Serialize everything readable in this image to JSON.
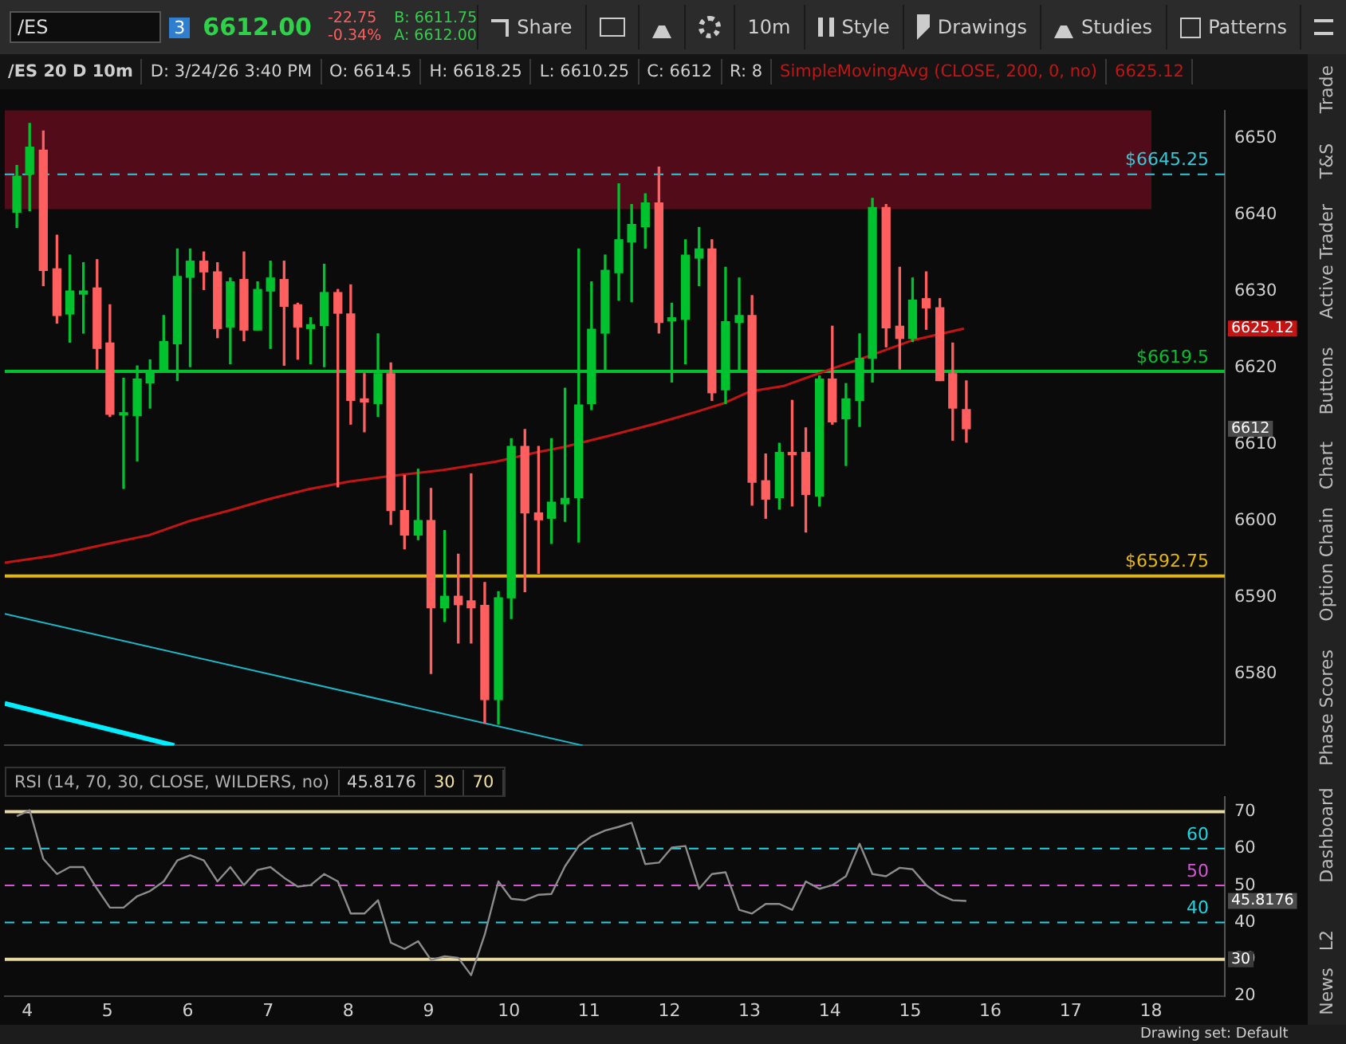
{
  "chart_data": [
    {
      "type": "other",
      "annotations": [
        "/ES",
        "3",
        "6612.00",
        "-22.75",
        "-0.34%",
        "B: 6611.75",
        "A: 6612.00",
        "Share",
        "10m",
        "Style",
        "Drawings",
        "Studies",
        "Patterns",
        "Trade",
        "T&S",
        "Active Trader",
        "Buttons",
        "Chart",
        "Option Chain",
        "Phase Scores",
        "Dashboard",
        "L2",
        "News",
        "Drawing set: Default"
      ]
    },
    {
      "type": "candlestick",
      "xlim": [
        3.72,
        18.92
      ],
      "xticks": [
        4,
        5,
        6,
        7,
        8,
        9,
        10,
        11,
        12,
        13,
        14,
        15,
        16,
        17,
        18
      ],
      "ylim": [
        6570.6,
        6653.6
      ],
      "yticks": [
        6580,
        6590,
        6600,
        6610,
        6620,
        6630,
        6640,
        6650
      ],
      "tick_labels": "y",
      "grid": false,
      "legend": "top right",
      "x": [
        3.87,
        4.03,
        4.2,
        4.37,
        4.53,
        4.7,
        4.87,
        5.03,
        5.2,
        5.37,
        5.53,
        5.7,
        5.87,
        6.03,
        6.2,
        6.37,
        6.53,
        6.7,
        6.87,
        7.03,
        7.2,
        7.37,
        7.53,
        7.7,
        7.87,
        8.03,
        8.2,
        8.37,
        8.53,
        8.7,
        8.87,
        9.03,
        9.2,
        9.37,
        9.53,
        9.7,
        9.87,
        10.03,
        10.2,
        10.37,
        10.53,
        10.7,
        10.87,
        11.03,
        11.2,
        11.37,
        11.53,
        11.7,
        11.87,
        12.03,
        12.2,
        12.37,
        12.53,
        12.7,
        12.87,
        13.03,
        13.2,
        13.37,
        13.53,
        13.7,
        13.87,
        14.03,
        14.2,
        14.37,
        14.53,
        14.7,
        14.87,
        15.03,
        15.2,
        15.37,
        15.53,
        15.7
      ],
      "ohlc": [
        [
          6640.3,
          6646.4,
          6638.3,
          6645.0
        ],
        [
          6645.3,
          6651.9,
          6640.5,
          6648.8
        ],
        [
          6648.4,
          6650.9,
          6630.7,
          6632.7
        ],
        [
          6632.9,
          6637.3,
          6625.8,
          6626.8
        ],
        [
          6627.0,
          6634.7,
          6623.3,
          6630.0
        ],
        [
          6629.6,
          6633.7,
          6624.5,
          6630.0
        ],
        [
          6630.4,
          6634.1,
          6619.8,
          6622.5
        ],
        [
          6623.2,
          6628.2,
          6613.6,
          6613.9
        ],
        [
          6613.8,
          6618.6,
          6604.2,
          6614.1
        ],
        [
          6613.7,
          6620.2,
          6607.8,
          6618.5
        ],
        [
          6618.0,
          6621.0,
          6614.7,
          6619.5
        ],
        [
          6619.5,
          6626.8,
          6619.5,
          6623.4
        ],
        [
          6623.1,
          6635.5,
          6618.3,
          6631.9
        ],
        [
          6631.8,
          6635.5,
          6620.1,
          6633.9
        ],
        [
          6633.9,
          6635.1,
          6630.2,
          6632.5
        ],
        [
          6632.5,
          6633.7,
          6623.9,
          6625.1
        ],
        [
          6625.3,
          6631.7,
          6620.5,
          6631.2
        ],
        [
          6631.5,
          6635.1,
          6623.5,
          6624.9
        ],
        [
          6624.9,
          6631.2,
          6624.9,
          6630.2
        ],
        [
          6630.0,
          6633.9,
          6622.5,
          6631.7
        ],
        [
          6631.5,
          6633.9,
          6620.3,
          6628.0
        ],
        [
          6628.2,
          6628.4,
          6621.1,
          6625.3
        ],
        [
          6625.1,
          6626.5,
          6620.5,
          6625.6
        ],
        [
          6625.5,
          6633.5,
          6620.1,
          6629.8
        ],
        [
          6629.8,
          6630.2,
          6604.4,
          6627.1
        ],
        [
          6627.0,
          6630.8,
          6612.6,
          6615.7
        ],
        [
          6615.9,
          6619.2,
          6611.6,
          6615.5
        ],
        [
          6615.3,
          6624.4,
          6613.6,
          6619.2
        ],
        [
          6619.2,
          6620.6,
          6599.5,
          6601.3
        ],
        [
          6601.3,
          6605.9,
          6596.3,
          6598.1
        ],
        [
          6598.1,
          6606.7,
          6597.5,
          6600.0
        ],
        [
          6600.0,
          6604.2,
          6580.0,
          6588.6
        ],
        [
          6588.6,
          6598.7,
          6586.8,
          6590.1
        ],
        [
          6590.1,
          6595.6,
          6584.0,
          6589.0
        ],
        [
          6589.5,
          6606.1,
          6584.0,
          6588.6
        ],
        [
          6588.9,
          6591.9,
          6573.5,
          6576.6
        ],
        [
          6576.6,
          6590.7,
          6573.4,
          6589.9
        ],
        [
          6589.9,
          6610.7,
          6587.2,
          6609.7
        ],
        [
          6609.7,
          6611.9,
          6590.7,
          6601.0
        ],
        [
          6601.0,
          6609.7,
          6593.1,
          6600.1
        ],
        [
          6600.3,
          6610.7,
          6597.0,
          6602.4
        ],
        [
          6602.2,
          6617.3,
          6599.9,
          6602.9
        ],
        [
          6603.0,
          6635.5,
          6597.2,
          6615.1
        ],
        [
          6615.3,
          6631.2,
          6614.5,
          6625.0
        ],
        [
          6624.5,
          6634.7,
          6619.7,
          6632.7
        ],
        [
          6632.4,
          6644.0,
          6628.8,
          6636.7
        ],
        [
          6636.4,
          6641.3,
          6628.6,
          6638.7
        ],
        [
          6638.4,
          6642.7,
          6635.6,
          6641.5
        ],
        [
          6641.5,
          6646.2,
          6624.5,
          6625.9
        ],
        [
          6626.1,
          6628.4,
          6618.1,
          6626.5
        ],
        [
          6626.3,
          6636.7,
          6620.5,
          6634.7
        ],
        [
          6634.3,
          6638.3,
          6630.7,
          6635.5
        ],
        [
          6635.5,
          6636.7,
          6615.7,
          6616.7
        ],
        [
          6617.1,
          6633.1,
          6615.3,
          6626.0
        ],
        [
          6625.9,
          6631.7,
          6619.7,
          6626.8
        ],
        [
          6626.8,
          6629.4,
          6602.0,
          6605.0
        ],
        [
          6605.2,
          6608.7,
          6600.3,
          6602.8
        ],
        [
          6603.0,
          6610.1,
          6601.5,
          6608.9
        ],
        [
          6608.9,
          6615.7,
          6601.9,
          6608.6
        ],
        [
          6608.9,
          6612.1,
          6598.5,
          6603.4
        ],
        [
          6603.2,
          6618.9,
          6601.9,
          6618.5
        ],
        [
          6618.5,
          6625.4,
          6612.6,
          6612.9
        ],
        [
          6613.3,
          6617.9,
          6607.2,
          6615.9
        ],
        [
          6615.7,
          6624.4,
          6612.3,
          6621.2
        ],
        [
          6621.2,
          6642.1,
          6618.1,
          6640.9
        ],
        [
          6640.9,
          6641.3,
          6622.7,
          6625.2
        ],
        [
          6625.4,
          6633.1,
          6619.8,
          6623.8
        ],
        [
          6623.8,
          6631.7,
          6623.4,
          6628.8
        ],
        [
          6629.0,
          6632.5,
          6625.0,
          6627.8
        ],
        [
          6627.8,
          6629.0,
          6618.3,
          6618.3
        ],
        [
          6619.2,
          6623.2,
          6610.5,
          6614.7
        ],
        [
          6614.5,
          6618.25,
          6610.25,
          6612
        ]
      ],
      "series": [
        {
          "name": "SimpleMovingAvg (CLOSE, 200, 0, no)",
          "type": "line",
          "color": "#c41414",
          "x": [
            3.72,
            4.32,
            5.02,
            5.52,
            6.01,
            6.51,
            7.01,
            7.51,
            8.01,
            8.51,
            9.18,
            9.84,
            10.34,
            10.68,
            11.18,
            11.84,
            12.33,
            12.67,
            13.01,
            13.43,
            14.01,
            14.51,
            15.01,
            15.67
          ],
          "values": [
            6594.5,
            6595.4,
            6597.0,
            6598.1,
            6599.9,
            6601.3,
            6602.8,
            6604.1,
            6605.1,
            6605.8,
            6606.6,
            6607.7,
            6608.9,
            6609.6,
            6610.9,
            6612.7,
            6614.2,
            6615.3,
            6616.9,
            6617.6,
            6619.8,
            6621.6,
            6623.5,
            6625.1
          ]
        },
        {
          "type": "line",
          "color": "#1ab8c8",
          "x": [
            3.72,
            10.92
          ],
          "values": [
            6587.8,
            6570.6
          ]
        },
        {
          "type": "line",
          "color": "#00eeff",
          "x": [
            3.72,
            5.83
          ],
          "values": [
            6576.1,
            6570.6
          ]
        }
      ],
      "ref_lines": [
        {
          "axis": "y",
          "value": 6645.25,
          "label": "$6645.25",
          "color": "#35c8d8",
          "line_style": "dashed"
        },
        {
          "axis": "y",
          "value": 6619.5,
          "label": "$6619.5",
          "color": "#00c22e",
          "line_style": "solid"
        },
        {
          "axis": "y",
          "value": 6592.75,
          "label": "$6592.75",
          "color": "#e6b800",
          "line_style": "solid"
        }
      ],
      "bands": [
        {
          "axis": "y",
          "from": 6640.7,
          "to": 6653.6,
          "color": "#520b18"
        }
      ],
      "annotations": [
        "/ES 20 D 10m",
        "D: 3/24/26 3:40 PM",
        "O: 6614.5",
        "H: 6618.25",
        "L: 6610.25",
        "C: 6612",
        "R: 8",
        "6625.12",
        "6625.12",
        "6612"
      ]
    },
    {
      "type": "line",
      "xlim": [
        3.72,
        18.92
      ],
      "xticks": [
        4,
        5,
        6,
        7,
        8,
        9,
        10,
        11,
        12,
        13,
        14,
        15,
        16,
        17,
        18
      ],
      "ylim": [
        20,
        74
      ],
      "yticks": [
        20,
        30,
        40,
        50,
        60,
        70
      ],
      "grid": false,
      "marker": "none",
      "line_style": "solid",
      "legend": "top left",
      "series": [
        {
          "name": "RSI (14, 70, 30, CLOSE, WILDERS, no)",
          "color": "#8c8c8c",
          "x": [
            3.87,
            4.03,
            4.2,
            4.37,
            4.53,
            4.7,
            4.87,
            5.03,
            5.2,
            5.37,
            5.53,
            5.7,
            5.87,
            6.03,
            6.2,
            6.37,
            6.53,
            6.7,
            6.87,
            7.03,
            7.2,
            7.37,
            7.53,
            7.7,
            7.87,
            8.03,
            8.2,
            8.37,
            8.53,
            8.7,
            8.87,
            9.03,
            9.2,
            9.37,
            9.53,
            9.7,
            9.87,
            10.03,
            10.2,
            10.37,
            10.53,
            10.7,
            10.87,
            11.03,
            11.2,
            11.37,
            11.53,
            11.7,
            11.87,
            12.03,
            12.2,
            12.37,
            12.53,
            12.7,
            12.87,
            13.03,
            13.2,
            13.37,
            13.53,
            13.7,
            13.87,
            14.03,
            14.2,
            14.37,
            14.53,
            14.7,
            14.87,
            15.03,
            15.2,
            15.37,
            15.53,
            15.7
          ],
          "values": [
            68.8,
            70.4,
            57.2,
            53.1,
            55.0,
            55.0,
            49.1,
            44.0,
            44.0,
            47.1,
            48.5,
            51.1,
            56.8,
            58.2,
            56.8,
            51.1,
            55.0,
            50.1,
            54.2,
            55.0,
            52.1,
            49.7,
            50.1,
            53.1,
            51.1,
            42.4,
            42.4,
            46.0,
            34.5,
            32.8,
            34.9,
            29.8,
            30.8,
            30.4,
            25.7,
            36.7,
            51.1,
            46.4,
            46.0,
            47.5,
            47.7,
            55.2,
            60.7,
            63.3,
            64.9,
            65.9,
            67.0,
            55.8,
            56.2,
            60.3,
            60.7,
            49.1,
            53.1,
            53.6,
            43.4,
            42.4,
            45.0,
            45.0,
            43.4,
            51.1,
            49.1,
            50.1,
            52.5,
            61.3,
            53.1,
            52.5,
            54.8,
            54.4,
            50.1,
            47.5,
            46.0,
            45.8
          ]
        }
      ],
      "ref_lines": [
        {
          "axis": "y",
          "value": 70,
          "label": null,
          "color": "#e8d9a0",
          "line_style": "solid"
        },
        {
          "axis": "y",
          "value": 60,
          "label": "60",
          "color": "#22d3e0",
          "line_style": "dashed"
        },
        {
          "axis": "y",
          "value": 50,
          "label": "50",
          "color": "#d655d6",
          "line_style": "dashed"
        },
        {
          "axis": "y",
          "value": 40,
          "label": "40",
          "color": "#22d3e0",
          "line_style": "dashed"
        },
        {
          "axis": "y",
          "value": 30,
          "label": null,
          "color": "#e8d9a0",
          "line_style": "solid"
        }
      ],
      "annotations": [
        "45.8176",
        "30",
        "70",
        "45.8176",
        "30"
      ]
    }
  ]
}
